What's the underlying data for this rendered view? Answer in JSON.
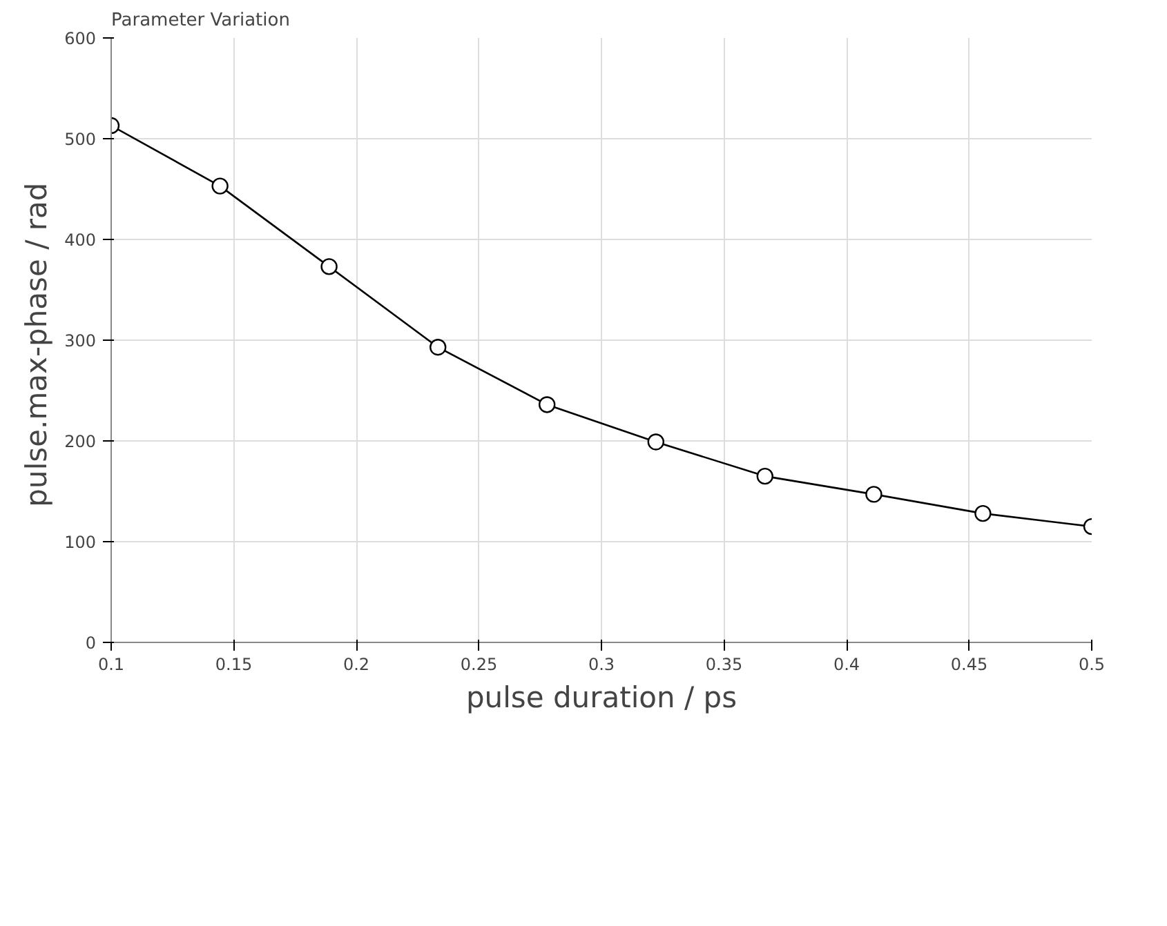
{
  "chart_data": {
    "type": "line",
    "title": "Parameter Variation",
    "xlabel": "pulse duration / ps",
    "ylabel": "pulse.max-phase  / rad",
    "x": [
      0.1,
      0.1444,
      0.1889,
      0.2333,
      0.2778,
      0.3222,
      0.3667,
      0.4111,
      0.4556,
      0.5
    ],
    "series": [
      {
        "color": "#000000",
        "values": [
          513,
          453,
          373,
          293,
          236,
          199,
          165,
          147,
          128,
          115
        ]
      }
    ],
    "xlim": [
      0.1,
      0.5
    ],
    "xticks": [
      0.1,
      0.15,
      0.2,
      0.25,
      0.3,
      0.35,
      0.4,
      0.45,
      0.5
    ],
    "ylim": [
      0,
      600
    ],
    "yticks": [
      0,
      100,
      200,
      300,
      400,
      500,
      600
    ],
    "grid": true,
    "marker": "circle",
    "line_style": "solid"
  }
}
